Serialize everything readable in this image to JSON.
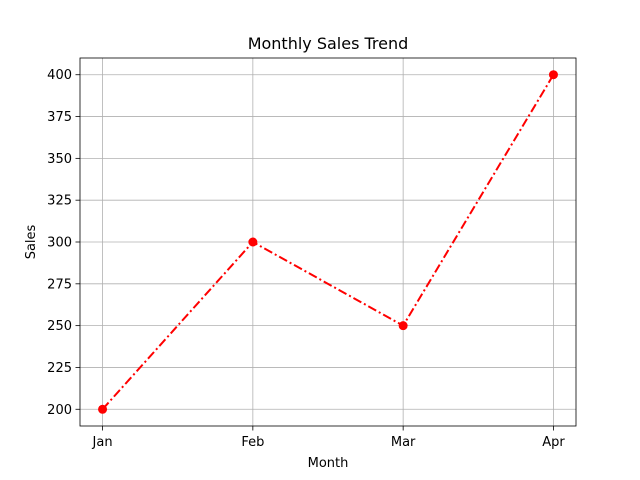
{
  "chart_data": {
    "type": "line",
    "title": "Monthly Sales Trend",
    "xlabel": "Month",
    "ylabel": "Sales",
    "categories": [
      "Jan",
      "Feb",
      "Mar",
      "Apr"
    ],
    "series": [
      {
        "values": [
          200,
          300,
          250,
          400
        ],
        "color": "#ff0000",
        "line_style": "dash-dot",
        "marker": "circle"
      }
    ],
    "ylim": [
      190,
      410
    ],
    "yticks": [
      200,
      225,
      250,
      275,
      300,
      325,
      350,
      375,
      400
    ],
    "grid": true
  }
}
